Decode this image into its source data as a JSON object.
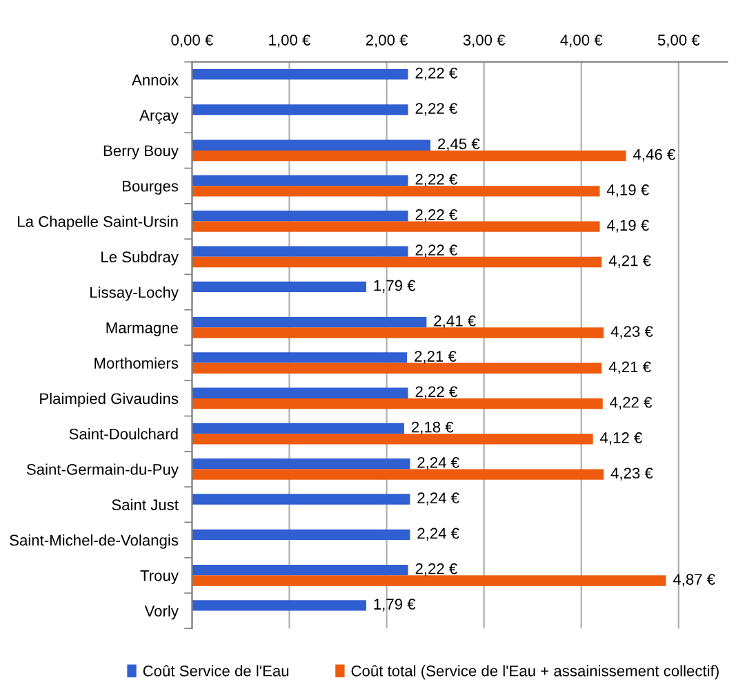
{
  "chart_data": {
    "type": "bar",
    "orientation": "horizontal",
    "categories": [
      "Annoix",
      "Arçay",
      "Berry Bouy",
      "Bourges",
      "La Chapelle Saint-Ursin",
      "Le Subdray",
      "Lissay-Lochy",
      "Marmagne",
      "Morthomiers",
      "Plaimpied Givaudins",
      "Saint-Doulchard",
      "Saint-Germain-du-Puy",
      "Saint Just",
      "Saint-Michel-de-Volangis",
      "Trouy",
      "Vorly"
    ],
    "series": [
      {
        "name": "Coût Service de l'Eau",
        "color": "#2f5fd0",
        "values": [
          2.22,
          2.22,
          2.45,
          2.22,
          2.22,
          2.22,
          1.79,
          2.41,
          2.21,
          2.22,
          2.18,
          2.24,
          2.24,
          2.24,
          2.22,
          1.79
        ],
        "value_labels": [
          "2,22 €",
          "2,22 €",
          "2,45 €",
          "2,22 €",
          "2,22 €",
          "2,22 €",
          "1,79 €",
          "2,41 €",
          "2,21 €",
          "2,22 €",
          "2,18 €",
          "2,24 €",
          "2,24 €",
          "2,24 €",
          "2,22 €",
          "1,79 €"
        ]
      },
      {
        "name": "Coût total (Service de l'Eau + assainissement collectif)",
        "color": "#ee5a0e",
        "values": [
          null,
          null,
          4.46,
          4.19,
          4.19,
          4.21,
          null,
          4.23,
          4.21,
          4.22,
          4.12,
          4.23,
          null,
          null,
          4.87,
          null
        ],
        "value_labels": [
          null,
          null,
          "4,46 €",
          "4,19 €",
          "4,19 €",
          "4,21 €",
          null,
          "4,23 €",
          "4,21 €",
          "4,22 €",
          "4,12 €",
          "4,23 €",
          null,
          null,
          "4,87 €",
          null
        ]
      }
    ],
    "xlim": [
      0,
      5.5
    ],
    "xticks": [
      {
        "value": 0,
        "label": "0,00 €"
      },
      {
        "value": 1,
        "label": "1,00 €"
      },
      {
        "value": 2,
        "label": "2,00 €"
      },
      {
        "value": 3,
        "label": "3,00 €"
      },
      {
        "value": 4,
        "label": "4,00 €"
      },
      {
        "value": 5,
        "label": "5,00 €"
      }
    ],
    "grid": "x",
    "legend": "bottom"
  }
}
